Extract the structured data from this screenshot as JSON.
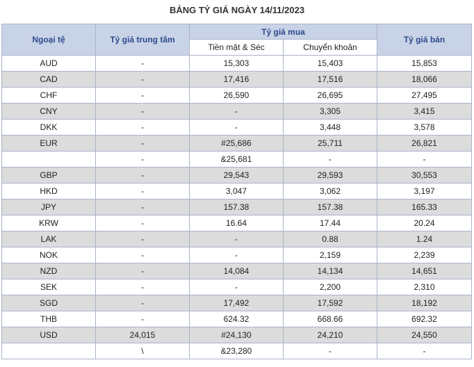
{
  "title": "BẢNG TỶ GIÁ NGÀY 14/11/2023",
  "headers": {
    "currency": "Ngoại tệ",
    "central": "Tỷ giá trung tâm",
    "buy": "Tỷ giá mua",
    "buy_cash": "Tiền mặt & Séc",
    "buy_transfer": "Chuyển khoản",
    "sell": "Tỷ giá bán"
  },
  "rows": [
    [
      "AUD",
      "-",
      "15,303",
      "15,403",
      "15,853"
    ],
    [
      "CAD",
      "-",
      "17,416",
      "17,516",
      "18,066"
    ],
    [
      "CHF",
      "-",
      "26,590",
      "26,695",
      "27,495"
    ],
    [
      "CNY",
      "-",
      "-",
      "3,305",
      "3,415"
    ],
    [
      "DKK",
      "-",
      "-",
      "3,448",
      "3,578"
    ],
    [
      "EUR",
      "-",
      "#25,686",
      "25,711",
      "26,821"
    ],
    [
      "",
      "-",
      "&25,681",
      "-",
      "-"
    ],
    [
      "GBP",
      "-",
      "29,543",
      "29,593",
      "30,553"
    ],
    [
      "HKD",
      "-",
      "3,047",
      "3,062",
      "3,197"
    ],
    [
      "JPY",
      "-",
      "157.38",
      "157.38",
      "165.33"
    ],
    [
      "KRW",
      "-",
      "16.64",
      "17.44",
      "20.24"
    ],
    [
      "LAK",
      "-",
      "-",
      "0.88",
      "1.24"
    ],
    [
      "NOK",
      "-",
      "-",
      "2,159",
      "2,239"
    ],
    [
      "NZD",
      "-",
      "14,084",
      "14,134",
      "14,651"
    ],
    [
      "SEK",
      "-",
      "-",
      "2,200",
      "2,310"
    ],
    [
      "SGD",
      "-",
      "17,492",
      "17,592",
      "18,192"
    ],
    [
      "THB",
      "-",
      "624.32",
      "668.66",
      "692.32"
    ],
    [
      "USD",
      "24,015",
      "#24,130",
      "24,210",
      "24,550"
    ],
    [
      "",
      "\\",
      "&23,280",
      "-",
      "-"
    ]
  ]
}
